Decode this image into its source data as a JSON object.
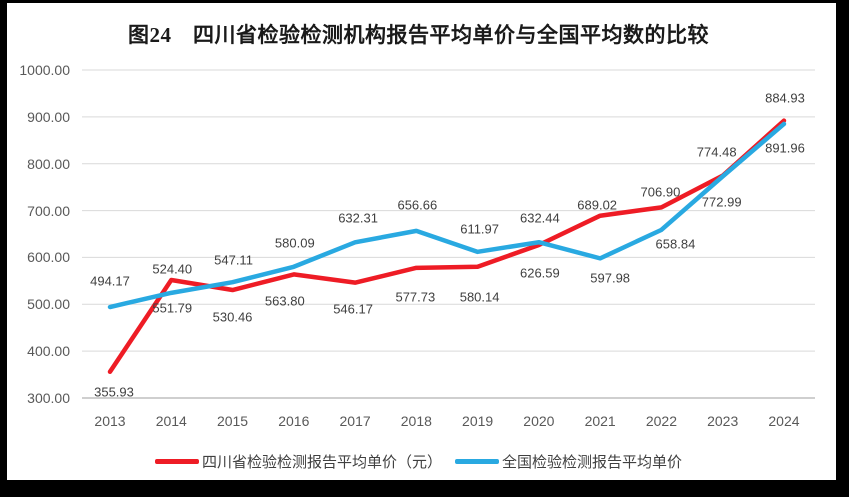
{
  "chart": {
    "title": "图24　四川省检验检测机构报告平均单价与全国平均数的比较"
  },
  "chart_data": {
    "type": "line",
    "title": "图24　四川省检验检测机构报告平均单价与全国平均数的比较",
    "categories": [
      "2013",
      "2014",
      "2015",
      "2016",
      "2017",
      "2018",
      "2019",
      "2020",
      "2021",
      "2022",
      "2023",
      "2024"
    ],
    "series": [
      {
        "name": "四川省检验检测报告平均单价（元）",
        "color": "#ee1c25",
        "values": [
          355.93,
          551.79,
          530.46,
          563.8,
          546.17,
          577.73,
          580.14,
          626.59,
          689.02,
          706.9,
          774.48,
          891.96
        ],
        "labels": [
          "355.93",
          "551.79",
          "530.46",
          "563.80",
          "546.17",
          "577.73",
          "580.14",
          "626.59",
          "689.02",
          "706.90",
          "774.48",
          "891.96"
        ],
        "label_dx": [
          4,
          1,
          0,
          -9,
          -2,
          -1,
          2,
          1,
          -3,
          -1,
          -6,
          1
        ],
        "label_dy": [
          20,
          28,
          27,
          27,
          26,
          29,
          30,
          28,
          -11,
          -15,
          -24,
          27
        ]
      },
      {
        "name": "全国检验检测报告平均单价",
        "color": "#29a9e1",
        "values": [
          494.17,
          524.4,
          547.11,
          580.09,
          632.31,
          656.66,
          611.97,
          632.44,
          597.98,
          658.84,
          772.99,
          884.93
        ],
        "labels": [
          "494.17",
          "524.40",
          "547.11",
          "580.09",
          "632.31",
          "656.66",
          "611.97",
          "632.44",
          "597.98",
          "658.84",
          "772.99",
          "884.93"
        ],
        "label_dx": [
          0,
          1,
          1,
          1,
          3,
          1,
          2,
          1,
          10,
          14,
          -1,
          1
        ],
        "label_dy": [
          -26,
          -24,
          -22,
          -24,
          -24,
          -26,
          -23,
          -24,
          20,
          14,
          26,
          -26
        ]
      }
    ],
    "xlabel": "",
    "ylabel": "",
    "ylim": [
      300,
      1000
    ],
    "ytick_step": 100,
    "ytick_labels": [
      "300.00",
      "400.00",
      "500.00",
      "600.00",
      "700.00",
      "800.00",
      "900.00",
      "1000.00"
    ],
    "grid": true,
    "legend_position": "bottom"
  },
  "colors": {
    "sichuan_line": "#ee1c25",
    "national_line": "#29a9e1",
    "gridline": "#d9d9d9",
    "axis_line": "#bfbfbf",
    "axis_text": "#595959",
    "data_label_text": "#404040",
    "title_text": "#1a1a1a",
    "frame": "#000000",
    "canvas": "#ffffff"
  }
}
